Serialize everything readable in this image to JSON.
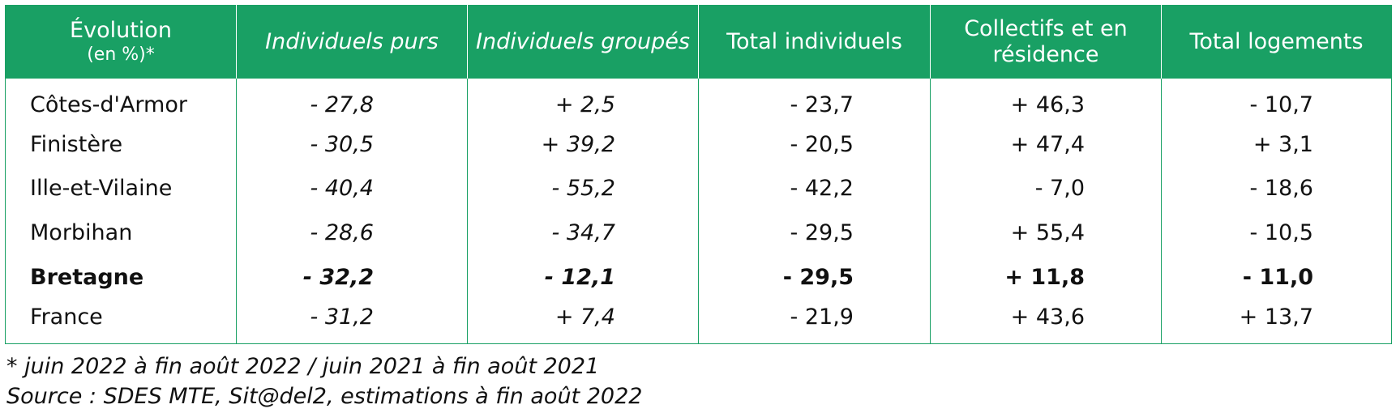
{
  "table": {
    "headers": [
      {
        "label": "Évolution",
        "sub": "(en %)*"
      },
      {
        "label": "Individuels purs"
      },
      {
        "label": "Individuels groupés"
      },
      {
        "label": "Total individuels"
      },
      {
        "label": "Collectifs et en résidence"
      },
      {
        "label": "Total logements"
      }
    ],
    "rows": [
      {
        "name": "Côtes-d'Armor",
        "values": [
          "- 27,8",
          "+ 2,5",
          "- 23,7",
          "+ 46,3",
          "- 10,7"
        ]
      },
      {
        "name": "Finistère",
        "values": [
          "- 30,5",
          "+ 39,2",
          "- 20,5",
          "+ 47,4",
          "+ 3,1"
        ]
      },
      {
        "name": "Ille-et-Vilaine",
        "values": [
          "- 40,4",
          "- 55,2",
          "- 42,2",
          "- 7,0",
          "- 18,6"
        ]
      },
      {
        "name": "Morbihan",
        "values": [
          "- 28,6",
          "- 34,7",
          "- 29,5",
          "+ 55,4",
          "- 10,5"
        ]
      },
      {
        "name": "Bretagne",
        "values": [
          "- 32,2",
          "- 12,1",
          "- 29,5",
          "+ 11,8",
          "- 11,0"
        ]
      },
      {
        "name": "France",
        "values": [
          "- 31,2",
          "+ 7,4",
          "- 21,9",
          "+ 43,6",
          "+ 13,7"
        ]
      }
    ]
  },
  "notes": {
    "footnote": "* juin 2022 à fin août 2022 / juin 2021 à fin août 2021",
    "source": "Source : SDES MTE, Sit@del2, estimations à fin août 2022"
  },
  "colors": {
    "header_bg": "#19a064",
    "header_text": "#ffffff",
    "border": "#19a064"
  }
}
